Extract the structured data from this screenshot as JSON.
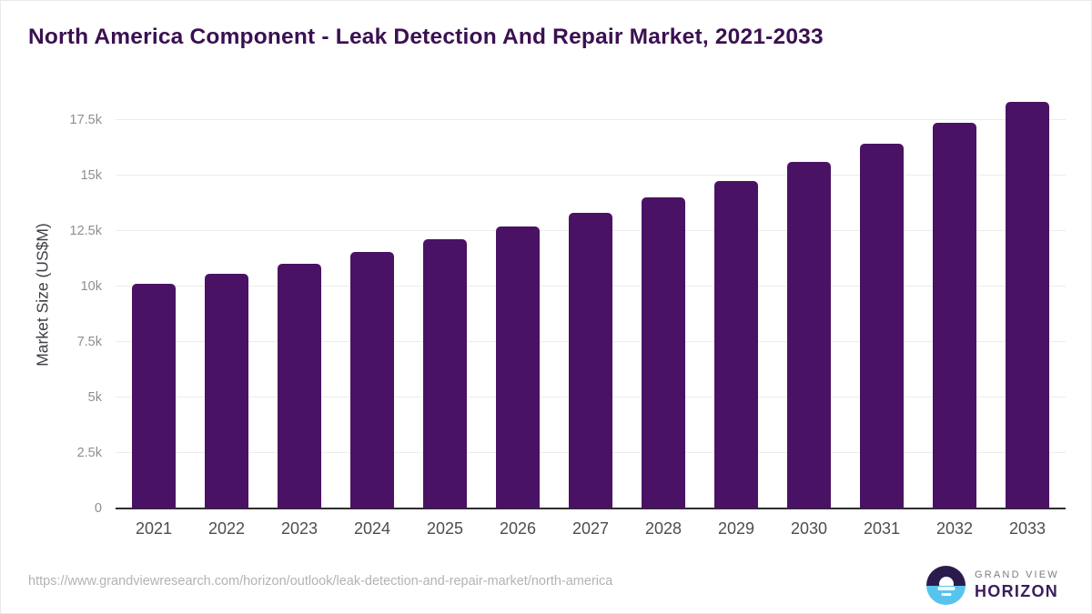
{
  "header": {
    "title": "North America Component - Leak Detection And Repair Market, 2021-2033"
  },
  "footer": {
    "source_url": "https://www.grandviewresearch.com/horizon/outlook/leak-detection-and-repair-market/north-america",
    "logo_top": "GRAND VIEW",
    "logo_bottom": "HORIZON"
  },
  "colors": {
    "bar": "#4a1264",
    "title": "#3b1052",
    "axis_line": "#2e2e2e",
    "gridline": "#ececee",
    "y_tick_text": "#8b8f93",
    "x_tick_text": "#4a4d52",
    "url_text": "#b3b3b3",
    "logo_dark": "#2b1b4d",
    "logo_blue": "#58c3ee",
    "logo_horizon_text": "#3a1d5d"
  },
  "chart_data": {
    "type": "bar",
    "title": "North America Component - Leak Detection And Repair Market, 2021-2033",
    "xlabel": "",
    "ylabel": "Market Size (US$M)",
    "unit": "US$M",
    "categories": [
      "2021",
      "2022",
      "2023",
      "2024",
      "2025",
      "2026",
      "2027",
      "2028",
      "2029",
      "2030",
      "2031",
      "2032",
      "2033"
    ],
    "values": [
      10100,
      10550,
      11000,
      11550,
      12100,
      12700,
      13300,
      14000,
      14750,
      15600,
      16400,
      17350,
      18300
    ],
    "ylim": [
      0,
      18750
    ],
    "yticks": [
      0,
      2500,
      5000,
      7500,
      10000,
      12500,
      15000,
      17500
    ],
    "ytick_labels": [
      "0",
      "2.5k",
      "5k",
      "7.5k",
      "10k",
      "12.5k",
      "15k",
      "17.5k"
    ],
    "grid": true,
    "legend": false
  }
}
